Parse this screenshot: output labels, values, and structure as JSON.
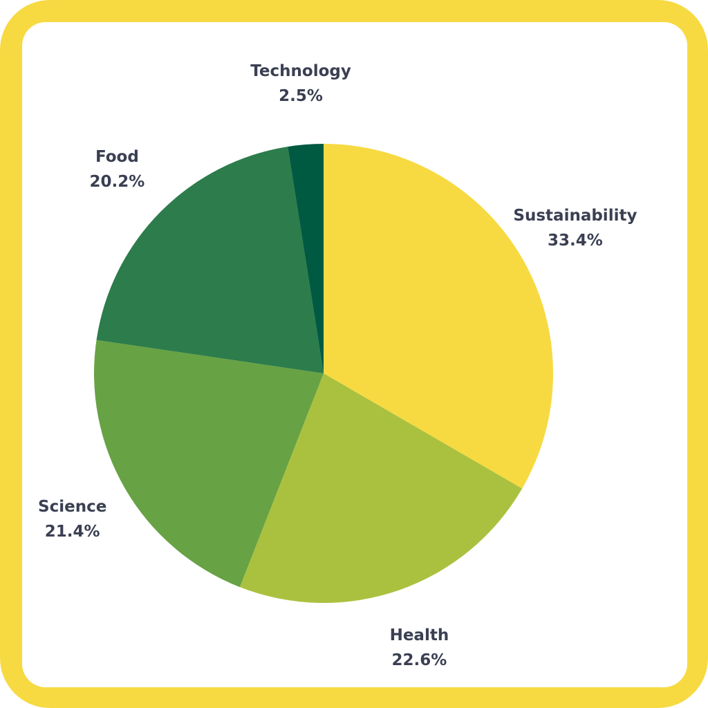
{
  "chart_data": {
    "type": "pie",
    "title": "",
    "slices": [
      {
        "label": "Sustainability",
        "value": 33.4,
        "value_label": "33.4%",
        "color": "#F7DA42"
      },
      {
        "label": "Health",
        "value": 22.6,
        "value_label": "22.6%",
        "color": "#AAC13F"
      },
      {
        "label": "Science",
        "value": 21.4,
        "value_label": "21.4%",
        "color": "#67A244"
      },
      {
        "label": "Food",
        "value": 20.2,
        "value_label": "20.2%",
        "color": "#2D7C4B"
      },
      {
        "label": "Technology",
        "value": 2.5,
        "value_label": "2.5%",
        "color": "#005A41"
      }
    ],
    "start_angle": "12 o'clock",
    "direction": "clockwise",
    "labels": "outside",
    "legend": "none"
  },
  "frame": {
    "border_color": "#F7DA42",
    "background_color": "#FFFFFF",
    "label_color": "#3A3F52"
  }
}
